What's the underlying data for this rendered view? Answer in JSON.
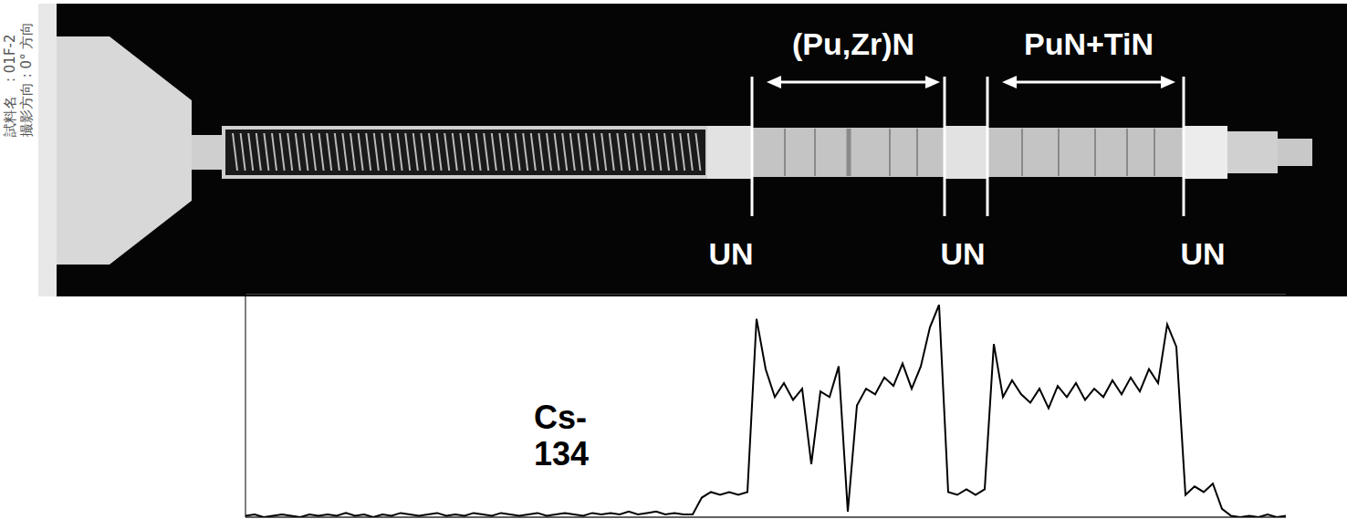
{
  "radiograph": {
    "sample_caption": [
      "試料名　: 01F-2",
      "撮影方向 : 0° 方向"
    ],
    "segment_labels": [
      "(Pu,Zr)N",
      "PuN+TiN"
    ],
    "boundary_labels": [
      "UN",
      "UN",
      "UN"
    ]
  },
  "chart_data": {
    "type": "line",
    "annotation": "Cs-134",
    "color": "#000000",
    "grid": true,
    "tick_labels": false,
    "xlim": [
      0,
      1140
    ],
    "ylim": [
      0,
      8
    ],
    "yticks": [
      0,
      1,
      2,
      3,
      4,
      5,
      6,
      7,
      8
    ],
    "x": [
      0,
      10,
      20,
      30,
      40,
      50,
      60,
      70,
      80,
      90,
      100,
      110,
      120,
      130,
      140,
      150,
      160,
      170,
      180,
      190,
      200,
      210,
      220,
      230,
      240,
      250,
      260,
      270,
      280,
      290,
      300,
      310,
      320,
      330,
      340,
      350,
      360,
      370,
      380,
      390,
      400,
      410,
      420,
      430,
      440,
      450,
      460,
      470,
      480,
      490,
      500,
      510,
      520,
      530,
      540,
      550,
      560,
      570,
      580,
      590,
      600,
      610,
      620,
      630,
      640,
      650,
      660,
      670,
      680,
      690,
      700,
      710,
      720,
      730,
      740,
      750,
      760,
      770,
      780,
      790,
      800,
      810,
      820,
      830,
      840,
      850,
      860,
      870,
      880,
      890,
      900,
      910,
      920,
      930,
      940,
      950,
      960,
      970,
      980,
      990,
      1000,
      1010,
      1020,
      1030,
      1040,
      1050,
      1060,
      1070,
      1080,
      1090,
      1100,
      1110,
      1120,
      1130,
      1140
    ],
    "values": [
      0.05,
      0.1,
      0,
      0.05,
      0.1,
      0.05,
      0,
      0.1,
      0.05,
      0.1,
      0.05,
      0.15,
      0.05,
      0.1,
      0,
      0.1,
      0.05,
      0.15,
      0.1,
      0.05,
      0.1,
      0.15,
      0.05,
      0.1,
      0.05,
      0.15,
      0.1,
      0.05,
      0.15,
      0.1,
      0.05,
      0.1,
      0.15,
      0.05,
      0.1,
      0.15,
      0.1,
      0.05,
      0.15,
      0.1,
      0.15,
      0.1,
      0.2,
      0.1,
      0.15,
      0.2,
      0.1,
      0.15,
      0.1,
      0.1,
      0.7,
      0.9,
      0.8,
      0.9,
      0.8,
      0.9,
      7.1,
      5.3,
      4.3,
      4.8,
      4.2,
      4.6,
      1.9,
      4.5,
      4.3,
      5.4,
      0.2,
      4.0,
      4.6,
      4.4,
      5.0,
      4.7,
      5.5,
      4.6,
      5.4,
      6.8,
      7.6,
      0.9,
      0.8,
      1.0,
      0.8,
      1.0,
      6.2,
      4.3,
      4.9,
      4.4,
      4.1,
      4.6,
      3.9,
      4.7,
      4.3,
      4.8,
      4.2,
      4.6,
      4.3,
      4.9,
      4.4,
      5.0,
      4.5,
      5.3,
      4.8,
      6.9,
      6.1,
      0.8,
      1.1,
      0.9,
      1.2,
      0.3,
      0.05,
      0,
      0.05,
      0,
      0.1,
      0,
      0.05
    ]
  }
}
